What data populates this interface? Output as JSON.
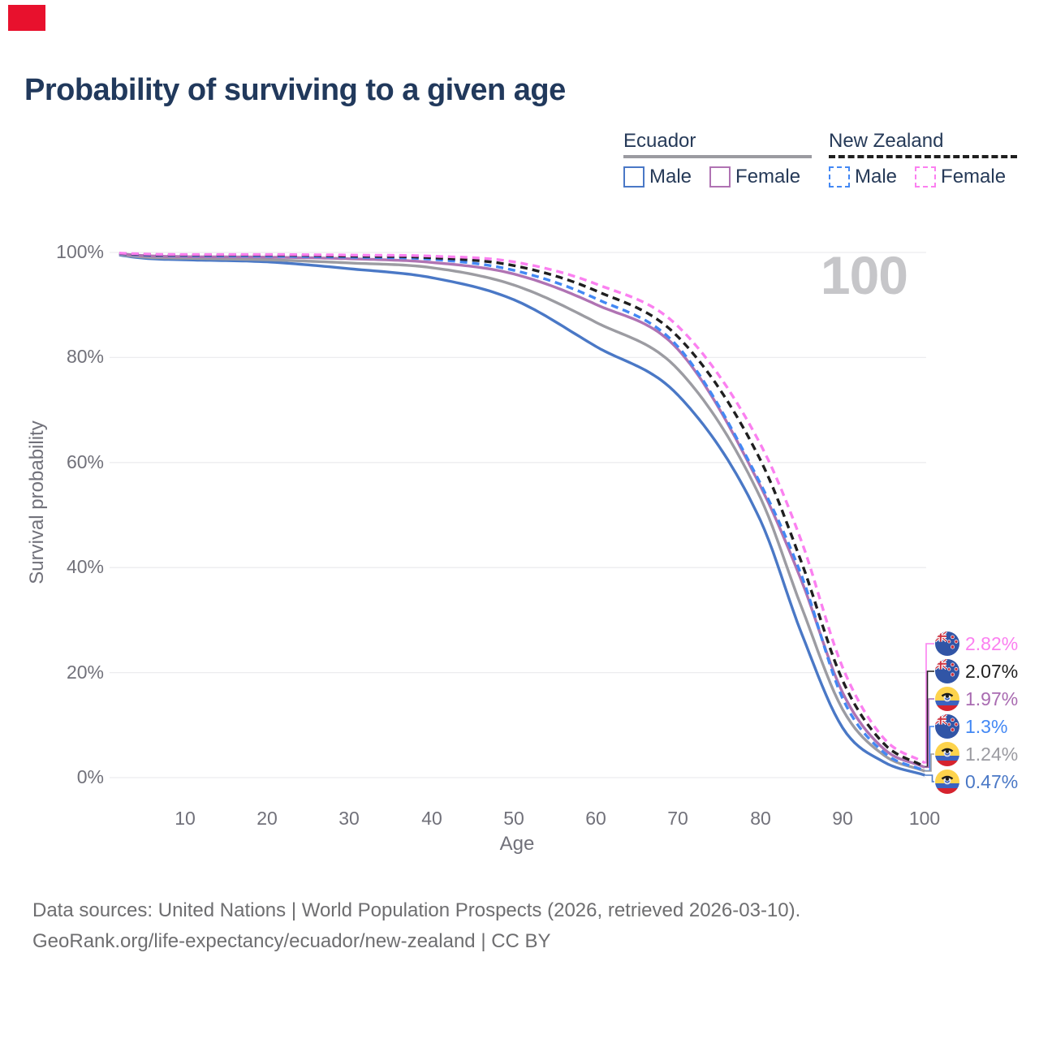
{
  "marker_color": "#e8112d",
  "title": "Probability of surviving to a given age",
  "watermark": "100",
  "legend": {
    "groups": [
      {
        "label": "Ecuador",
        "underline_style": "solid",
        "underline_color": "#9b9ba1",
        "items": [
          {
            "label": "Male",
            "color": "#4a78c6",
            "style": "solid"
          },
          {
            "label": "Female",
            "color": "#b073b3",
            "style": "solid"
          }
        ]
      },
      {
        "label": "New Zealand",
        "underline_style": "dashed",
        "underline_color": "#1f1f1f",
        "items": [
          {
            "label": "Male",
            "color": "#4388f4",
            "style": "dashed"
          },
          {
            "label": "Female",
            "color": "#fb80f0",
            "style": "dashed"
          }
        ]
      }
    ]
  },
  "chart_data": {
    "type": "line",
    "title": "Probability of surviving to a given age",
    "xlabel": "Age",
    "ylabel": "Survival probability",
    "xlim": [
      0,
      100
    ],
    "ylim": [
      0,
      100
    ],
    "grid": "horizontal-only",
    "x_ticks": [
      10,
      20,
      30,
      40,
      50,
      60,
      70,
      80,
      90,
      100
    ],
    "y_ticks": [
      {
        "value": 100,
        "label": "100%"
      },
      {
        "value": 80,
        "label": "80%"
      },
      {
        "value": 60,
        "label": "60%"
      },
      {
        "value": 40,
        "label": "40%"
      },
      {
        "value": 20,
        "label": "20%"
      },
      {
        "value": 0,
        "label": "0%"
      }
    ],
    "ages": [
      0,
      5,
      10,
      20,
      30,
      40,
      50,
      60,
      70,
      80,
      85,
      90,
      95,
      100
    ],
    "series": [
      {
        "key": "ecuador_male",
        "name": "Ecuador Male",
        "country": "ecuador",
        "style": "solid",
        "color": "#4a78c6",
        "values": [
          100,
          98.9,
          98.6,
          98.2,
          96.9,
          95.2,
          91.0,
          82.1,
          72.8,
          49.0,
          27.5,
          9.5,
          3.0,
          0.47
        ],
        "end_label": "0.47%"
      },
      {
        "key": "ecuador_total",
        "name": "Ecuador",
        "country": "ecuador",
        "style": "solid",
        "color": "#9c9ca2",
        "values": [
          100,
          99.1,
          98.9,
          98.6,
          98.0,
          97.1,
          93.8,
          86.7,
          77.7,
          53.3,
          32.5,
          13.0,
          4.3,
          1.24
        ],
        "end_label": "1.24%"
      },
      {
        "key": "ecuador_female",
        "name": "Ecuador Female",
        "country": "ecuador",
        "style": "solid",
        "color": "#b073b3",
        "values": [
          100,
          99.4,
          99.2,
          99.1,
          98.8,
          98.1,
          95.9,
          90.1,
          81.5,
          55.5,
          37.5,
          16.2,
          5.5,
          1.97
        ],
        "end_label": "1.97%"
      },
      {
        "key": "nz_male",
        "name": "New Zealand Male",
        "country": "nz",
        "style": "dashed",
        "color": "#4388f4",
        "values": [
          100,
          99.5,
          99.4,
          99.3,
          99.1,
          98.7,
          96.6,
          91.2,
          82.0,
          56.0,
          38.5,
          15.1,
          4.8,
          1.3
        ],
        "end_label": "1.3%"
      },
      {
        "key": "nz_total",
        "name": "New Zealand",
        "country": "nz",
        "style": "dashed",
        "color": "#1f1f1f",
        "values": [
          100,
          99.6,
          99.5,
          99.5,
          99.3,
          99.0,
          97.5,
          92.7,
          83.9,
          60.5,
          41.0,
          18.5,
          6.5,
          2.07
        ],
        "end_label": "2.07%"
      },
      {
        "key": "nz_female",
        "name": "New Zealand Female",
        "country": "nz",
        "style": "dashed",
        "color": "#fb80f0",
        "values": [
          100,
          99.7,
          99.6,
          99.6,
          99.5,
          99.3,
          98.2,
          94.0,
          85.9,
          63.5,
          45.0,
          21.0,
          7.5,
          2.82
        ],
        "end_label": "2.82%"
      }
    ],
    "end_labels": [
      {
        "series": "nz_female",
        "text": "2.82%",
        "flag": "nz",
        "color": "#fb80f0"
      },
      {
        "series": "nz_total",
        "text": "2.07%",
        "flag": "nz",
        "color": "#1f1f1f"
      },
      {
        "series": "ecuador_female",
        "text": "1.97%",
        "flag": "ecuador",
        "color": "#a96bb1"
      },
      {
        "series": "nz_male",
        "text": "1.3%",
        "flag": "nz",
        "color": "#4388f4"
      },
      {
        "series": "ecuador_total",
        "text": "1.24%",
        "flag": "ecuador",
        "color": "#9b9ba1"
      },
      {
        "series": "ecuador_male",
        "text": "0.47%",
        "flag": "ecuador",
        "color": "#4a78c6"
      }
    ],
    "grid_color": "#ececef"
  },
  "footer": {
    "line1": "Data sources: United Nations | World Population Prospects (2026, retrieved 2026-03-10).",
    "line2": "GeoRank.org/life-expectancy/ecuador/new-zealand | CC BY"
  }
}
